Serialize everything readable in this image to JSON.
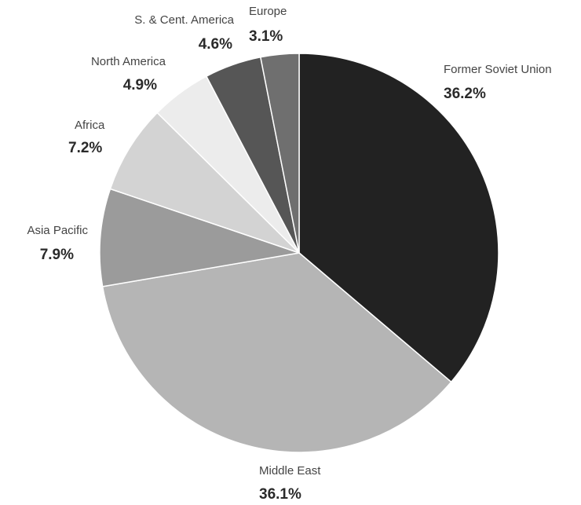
{
  "chart_data": {
    "type": "pie",
    "slices": [
      {
        "label": "Former Soviet Union",
        "value": 36.2,
        "value_label": "36.2%",
        "color": "#222222"
      },
      {
        "label": "Middle East",
        "value": 36.1,
        "value_label": "36.1%",
        "color": "#b5b5b5"
      },
      {
        "label": "Asia Pacific",
        "value": 7.9,
        "value_label": "7.9%",
        "color": "#9b9b9b"
      },
      {
        "label": "Africa",
        "value": 7.2,
        "value_label": "7.2%",
        "color": "#d3d3d3"
      },
      {
        "label": "North America",
        "value": 4.9,
        "value_label": "4.9%",
        "color": "#ececec"
      },
      {
        "label": "S. & Cent. America",
        "value": 4.6,
        "value_label": "4.6%",
        "color": "#565656"
      },
      {
        "label": "Europe",
        "value": 3.1,
        "value_label": "3.1%",
        "color": "#6f6f6f"
      }
    ]
  }
}
